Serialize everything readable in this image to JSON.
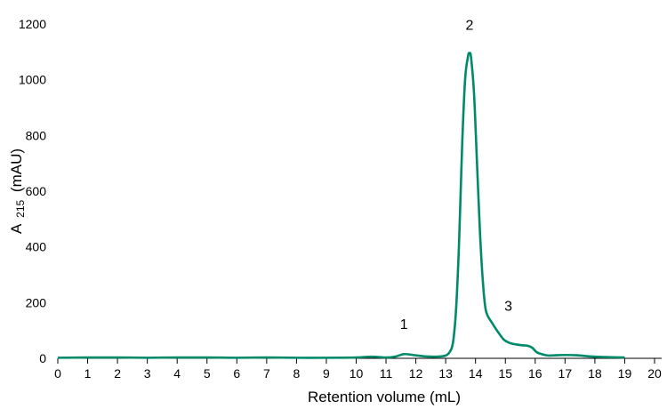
{
  "chart_data": {
    "type": "line",
    "title": "",
    "xlabel": "Retention volume (mL)",
    "ylabel_main": "A",
    "ylabel_sub": "215",
    "ylabel_unit": "(mAU)",
    "xlim": [
      0,
      20
    ],
    "ylim": [
      0,
      1200
    ],
    "xticks": [
      0,
      1,
      2,
      3,
      4,
      5,
      6,
      7,
      8,
      9,
      10,
      11,
      12,
      13,
      14,
      15,
      16,
      17,
      18,
      19,
      20
    ],
    "yticks": [
      0,
      200,
      400,
      600,
      800,
      1000,
      1200
    ],
    "grid": false,
    "line_color": "#008a6a",
    "series": [
      {
        "name": "chromatogram",
        "x": [
          0,
          1,
          2,
          3,
          4,
          5,
          6,
          7,
          8,
          9,
          10,
          10.5,
          11,
          11.3,
          11.6,
          11.9,
          12.3,
          12.7,
          13.0,
          13.15,
          13.25,
          13.35,
          13.45,
          13.55,
          13.65,
          13.75,
          13.8,
          13.85,
          13.95,
          14.05,
          14.15,
          14.25,
          14.35,
          14.55,
          14.75,
          14.95,
          15.15,
          15.35,
          15.55,
          15.75,
          15.9,
          16.05,
          16.25,
          16.45,
          16.7,
          17.0,
          17.4,
          17.8,
          18.2,
          18.6,
          19.0
        ],
        "y": [
          2,
          3,
          3,
          2,
          3,
          3,
          2,
          3,
          2,
          2,
          3,
          6,
          3,
          6,
          15,
          12,
          7,
          6,
          10,
          25,
          60,
          180,
          420,
          760,
          1000,
          1085,
          1095,
          1080,
          950,
          700,
          450,
          270,
          170,
          128,
          95,
          67,
          55,
          50,
          47,
          45,
          38,
          22,
          14,
          10,
          11,
          12,
          11,
          7,
          5,
          4,
          3
        ]
      }
    ],
    "annotations": [
      {
        "label": "1",
        "x": 11.6,
        "y": 105
      },
      {
        "label": "2",
        "x": 13.8,
        "y": 1180
      },
      {
        "label": "3",
        "x": 15.1,
        "y": 170
      }
    ]
  }
}
